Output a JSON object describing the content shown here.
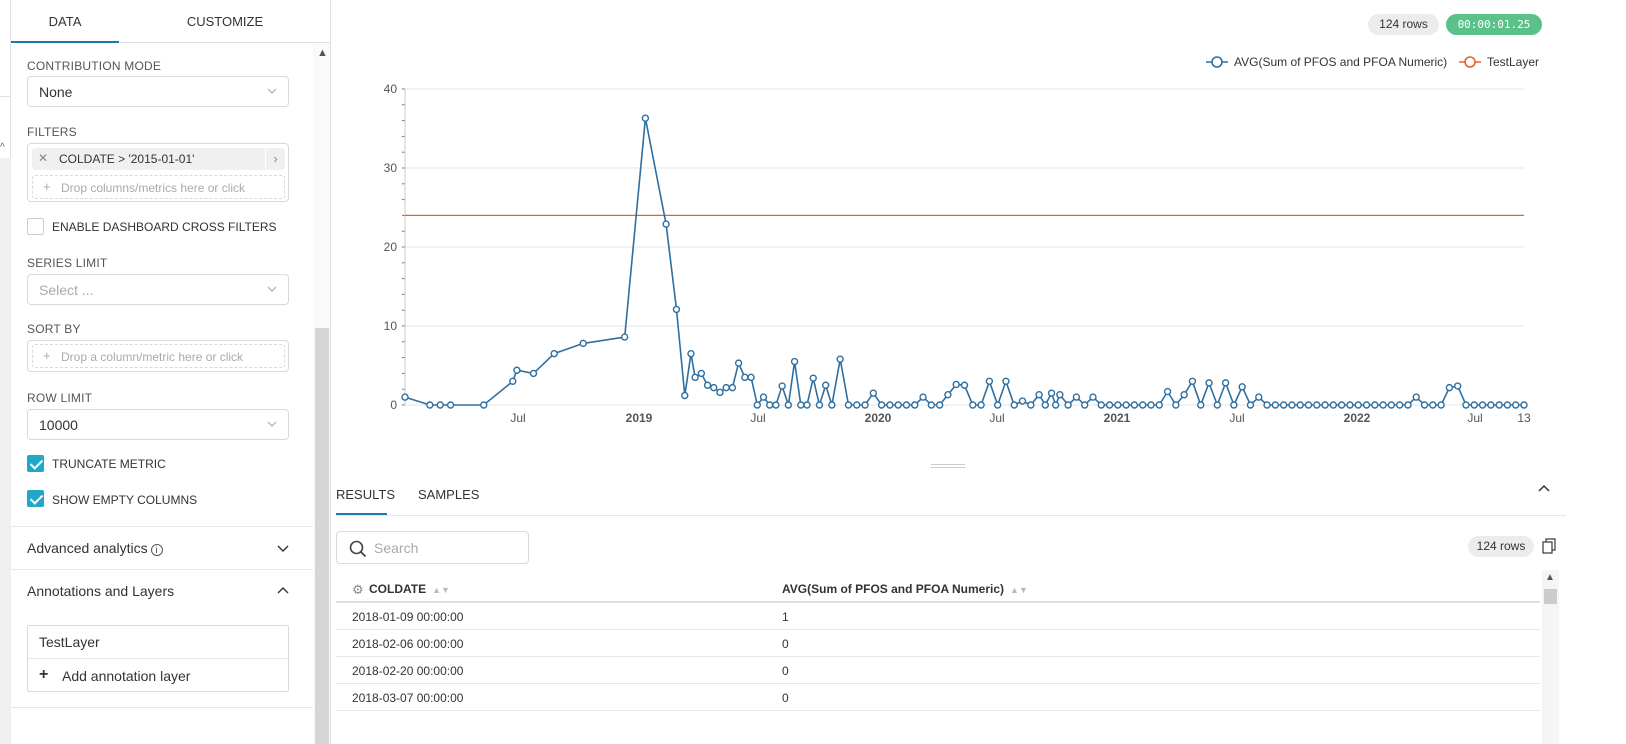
{
  "panel": {
    "tabs": [
      "DATA",
      "CUSTOMIZE"
    ],
    "contribution_mode": {
      "label": "CONTRIBUTION MODE",
      "value": "None"
    },
    "filters": {
      "label": "FILTERS",
      "chip": "COLDATE > '2015-01-01'",
      "drop_text": "Drop columns/metrics here or click"
    },
    "cross_filters": {
      "label": "ENABLE DASHBOARD CROSS FILTERS",
      "checked": false
    },
    "series_limit": {
      "label": "SERIES LIMIT",
      "placeholder": "Select ..."
    },
    "sort_by": {
      "label": "SORT BY",
      "drop_text": "Drop a column/metric here or click"
    },
    "row_limit": {
      "label": "ROW LIMIT",
      "value": "10000"
    },
    "truncate_metric": {
      "label": "TRUNCATE METRIC",
      "checked": true
    },
    "show_empty_columns": {
      "label": "SHOW EMPTY COLUMNS",
      "checked": true
    },
    "advanced_analytics": {
      "label": "Advanced analytics",
      "info_glyph": "i"
    },
    "annotations": {
      "label": "Annotations and Layers",
      "layer": "TestLayer",
      "add_label": "Add annotation layer",
      "plus_glyph": "+"
    }
  },
  "header": {
    "rows_badge": "124 rows",
    "timer": "00:00:01.25"
  },
  "chart_data": {
    "type": "line",
    "series": [
      {
        "name": "AVG(Sum of PFOS and PFOA Numeric)",
        "color": "#2f6f9f"
      },
      {
        "name": "TestLayer",
        "color": "#e8602c",
        "value": 24
      }
    ],
    "y_ticks": [
      "0",
      "10",
      "20",
      "30",
      "40"
    ],
    "ylim": [
      0,
      40
    ],
    "x_ticks": [
      "Jul",
      "2019",
      "Jul",
      "2020",
      "Jul",
      "2021",
      "Jul",
      "2022",
      "Jul",
      "13"
    ],
    "x_tick_bold": [
      false,
      true,
      false,
      true,
      false,
      true,
      false,
      true,
      false,
      false
    ],
    "x": [
      0,
      0.6,
      0.85,
      1.1,
      1.9,
      2.6,
      2.7,
      3.1,
      3.6,
      4.3,
      5.3,
      5.8,
      6.3,
      6.55,
      6.75,
      6.9,
      7.0,
      7.15,
      7.3,
      7.45,
      7.6,
      7.75,
      7.9,
      8.05,
      8.2,
      8.35,
      8.5,
      8.65,
      8.8,
      8.95,
      9.1,
      9.25,
      9.4,
      9.55,
      9.7,
      9.85,
      10.0,
      10.15,
      10.3,
      10.5,
      10.7,
      10.9,
      11.1,
      11.3,
      11.5,
      11.7,
      11.9,
      12.1,
      12.3,
      12.5,
      12.7,
      12.9,
      13.1,
      13.3,
      13.5,
      13.7,
      13.9,
      14.1,
      14.3,
      14.5,
      14.7,
      14.9,
      15.1,
      15.3,
      15.45,
      15.6,
      15.7,
      15.8,
      16.0,
      16.2,
      16.4,
      16.6,
      16.8,
      17.0,
      17.2,
      17.4,
      17.6,
      17.8,
      18.0,
      18.2,
      18.4,
      18.6,
      18.8,
      19.0,
      19.2,
      19.4,
      19.6,
      19.8,
      20.0,
      20.2,
      20.4,
      20.6,
      20.8,
      21.0,
      21.2,
      21.4,
      21.6,
      21.8,
      22.0,
      22.2,
      22.4,
      22.6,
      22.8,
      23.0,
      23.2,
      23.4,
      23.6,
      23.8,
      24.0,
      24.2,
      24.4,
      24.6,
      24.8,
      25.0,
      25.2,
      25.4,
      25.6,
      25.8,
      26.0,
      26.2,
      26.4,
      26.6,
      26.8,
      27.0
    ],
    "y": [
      1,
      0,
      0,
      0,
      0,
      3,
      4.4,
      4,
      6.5,
      7.8,
      8.6,
      36.3,
      22.9,
      12.1,
      1.2,
      6.5,
      3.5,
      4,
      2.5,
      2.2,
      1.6,
      2.2,
      2.2,
      5.3,
      3.5,
      3.5,
      0,
      1,
      0,
      0,
      2.4,
      0,
      5.5,
      0,
      0,
      3.4,
      0,
      2.5,
      0,
      5.8,
      0,
      0,
      0,
      1.5,
      0,
      0,
      0,
      0,
      0,
      1,
      0,
      0,
      1.3,
      2.6,
      2.5,
      0,
      0,
      3,
      0,
      3,
      0,
      0.5,
      0,
      1.3,
      0,
      1.5,
      0,
      1.3,
      0,
      1,
      0,
      1,
      0,
      0,
      0,
      0,
      0,
      0,
      0,
      0,
      1.7,
      0,
      1.3,
      3,
      0,
      2.8,
      0,
      2.8,
      0,
      2.3,
      0,
      1,
      0,
      0,
      0,
      0,
      0,
      0,
      0,
      0,
      0,
      0,
      0,
      0,
      0,
      0,
      0,
      0,
      0,
      0,
      1,
      0,
      0,
      0,
      2.2,
      2.4,
      0,
      0,
      0,
      0,
      0,
      0,
      0,
      0
    ]
  },
  "results": {
    "tabs": [
      "RESULTS",
      "SAMPLES"
    ],
    "search_placeholder": "Search",
    "rows_badge": "124 rows",
    "columns": [
      "COLDATE",
      "AVG(Sum of PFOS and PFOA Numeric)"
    ],
    "rows": [
      [
        "2018-01-09 00:00:00",
        "1"
      ],
      [
        "2018-02-06 00:00:00",
        "0"
      ],
      [
        "2018-02-20 00:00:00",
        "0"
      ],
      [
        "2018-03-07 00:00:00",
        "0"
      ]
    ]
  },
  "colors": {
    "accent": "#1a7ba8",
    "checkbox": "#20a7c9",
    "timer_bg": "#5ac189"
  }
}
